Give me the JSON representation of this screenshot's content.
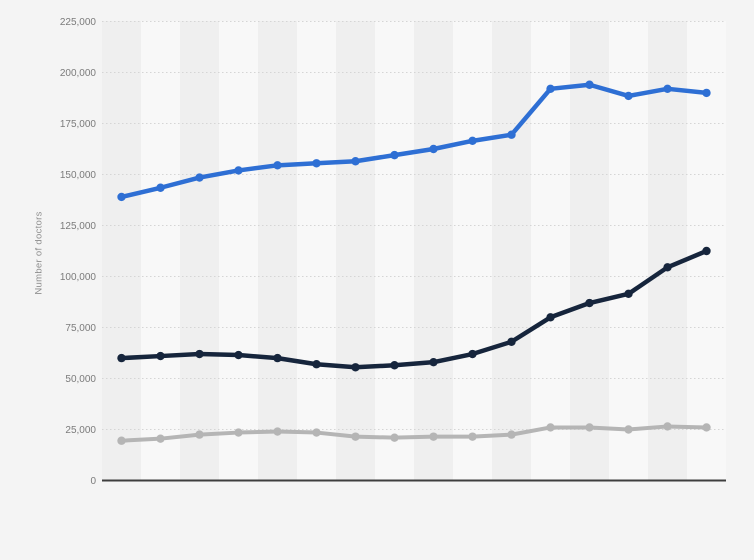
{
  "chart_data": {
    "type": "line",
    "title": "",
    "title_visible": false,
    "ylabel": "Number of doctors",
    "xlabel": "",
    "ylim": [
      0,
      225000
    ],
    "ytick_step": 25000,
    "yticks": [
      {
        "value": 0,
        "label": "0"
      },
      {
        "value": 25000,
        "label": "25,000"
      },
      {
        "value": 50000,
        "label": "50,000"
      },
      {
        "value": 75000,
        "label": "75,000"
      },
      {
        "value": 100000,
        "label": "100,000"
      },
      {
        "value": 125000,
        "label": "125,000"
      },
      {
        "value": 150000,
        "label": "150,000"
      },
      {
        "value": 175000,
        "label": "175,000"
      },
      {
        "value": 200000,
        "label": "200,000"
      },
      {
        "value": 225000,
        "label": "225,000"
      }
    ],
    "x_labels_visible": false,
    "x_index": [
      1,
      2,
      3,
      4,
      5,
      6,
      7,
      8,
      9,
      10,
      11,
      12,
      13,
      14,
      15,
      16
    ],
    "grid": "horizontal-dotted",
    "legend": "none",
    "series": [
      {
        "name": "series-blue",
        "color": "#2e6fd4",
        "values": [
          139000,
          143500,
          148500,
          152000,
          154500,
          155500,
          156500,
          159500,
          162500,
          166500,
          169500,
          192000,
          194000,
          188500,
          192000,
          190000
        ]
      },
      {
        "name": "series-dark-navy",
        "color": "#16253c",
        "values": [
          60000,
          61000,
          62000,
          61500,
          60000,
          57000,
          55500,
          56500,
          58000,
          62000,
          68000,
          80000,
          87000,
          91500,
          104500,
          112500
        ]
      },
      {
        "name": "series-gray",
        "color": "#b5b5b5",
        "values": [
          19500,
          20500,
          22500,
          23500,
          24000,
          23500,
          21500,
          21000,
          21500,
          21500,
          22500,
          26000,
          26000,
          25000,
          26500,
          26000
        ]
      }
    ],
    "colors": {
      "background": "#f4f4f4",
      "band_dark": "#efefef",
      "band_light": "#f8f8f8",
      "gridline": "#d5d5d5",
      "axis_line": "#3e3e3e",
      "tick_text": "#7b7b7b",
      "axis_title_text": "#8e8e8e"
    }
  }
}
